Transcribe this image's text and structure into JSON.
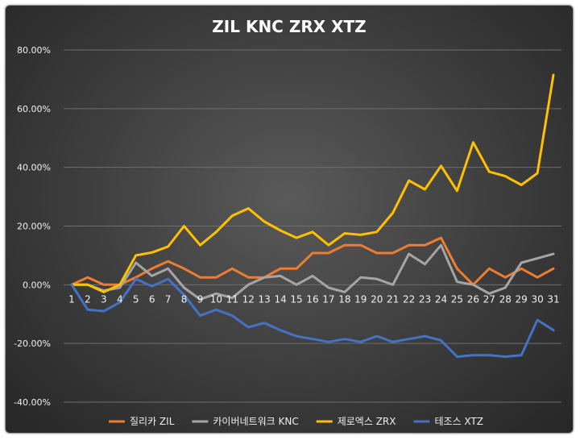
{
  "chart_data": {
    "type": "line",
    "title": "ZIL KNC ZRX XTZ",
    "xlabel": "",
    "ylabel": "",
    "x": [
      1,
      2,
      3,
      4,
      5,
      6,
      7,
      8,
      9,
      10,
      11,
      12,
      13,
      14,
      15,
      16,
      17,
      18,
      19,
      20,
      21,
      22,
      23,
      24,
      25,
      26,
      27,
      28,
      29,
      30,
      31
    ],
    "ylim": [
      -40,
      80
    ],
    "yticks": [
      80,
      60,
      40,
      20,
      0,
      -20,
      -40
    ],
    "ytick_labels": [
      "80.00%",
      "60.00%",
      "40.00%",
      "20.00%",
      "0.00%",
      "-20.00%",
      "-40.00%"
    ],
    "grid": true,
    "legend_position": "bottom",
    "series": [
      {
        "name": "질리카 ZIL",
        "color": "#ED7D31",
        "values": [
          0,
          2.5,
          0,
          0,
          2.5,
          5.5,
          8,
          5.5,
          2.5,
          2.5,
          5.5,
          2.5,
          2.5,
          5.5,
          5.5,
          10.8,
          10.8,
          13.5,
          13.5,
          10.8,
          10.8,
          13.5,
          13.5,
          16,
          5.5,
          0,
          5.5,
          2.5,
          5.5,
          2.5,
          5.5
        ]
      },
      {
        "name": "카이버네트워크 KNC",
        "color": "#A5A5A5",
        "values": [
          0,
          0,
          -2,
          -1,
          7.5,
          3,
          5.5,
          -1,
          -5,
          -3,
          -4.5,
          0,
          2.5,
          3,
          0,
          3,
          -1,
          -2.5,
          2.5,
          2,
          0,
          10.5,
          7,
          13.5,
          1,
          0,
          -3,
          -1,
          7.5,
          9,
          10.5
        ]
      },
      {
        "name": "제로엑스 ZRX",
        "color": "#FFC000",
        "values": [
          0,
          0,
          -2.5,
          0,
          10,
          11,
          13,
          20,
          13.5,
          18,
          23.5,
          26,
          21.5,
          18.5,
          16,
          18,
          13.5,
          17.5,
          17,
          18,
          24.5,
          35.5,
          32.5,
          40.5,
          32,
          48.5,
          38.5,
          37,
          34,
          38,
          71.5
        ]
      },
      {
        "name": "테조스 XTZ",
        "color": "#4472C4",
        "values": [
          0,
          -8.5,
          -9,
          -6,
          2,
          -0.5,
          2,
          -3.5,
          -10.5,
          -8.5,
          -10.5,
          -14.5,
          -13,
          -15.5,
          -17.5,
          -18.5,
          -19.5,
          -18.5,
          -19.5,
          -17.5,
          -19.5,
          -18.5,
          -17.5,
          -19,
          -24.5,
          -24,
          -24,
          -24.5,
          -24,
          -12,
          -15.5
        ]
      }
    ]
  }
}
